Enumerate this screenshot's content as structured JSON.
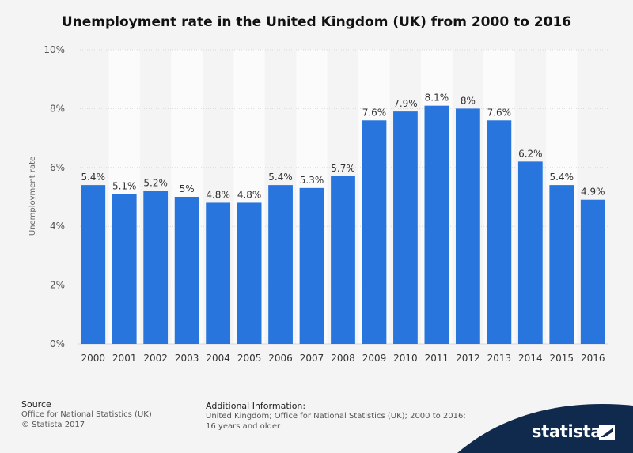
{
  "title": "Unemployment rate in the United Kingdom (UK) from 2000 to 2016",
  "chart_data": {
    "type": "bar",
    "title": "Unemployment rate in the United Kingdom (UK) from 2000 to 2016",
    "xlabel": "",
    "ylabel": "Unemployment rate",
    "categories": [
      "2000",
      "2001",
      "2002",
      "2003",
      "2004",
      "2005",
      "2006",
      "2007",
      "2008",
      "2009",
      "2010",
      "2011",
      "2012",
      "2013",
      "2014",
      "2015",
      "2016"
    ],
    "values": [
      5.4,
      5.1,
      5.2,
      5.0,
      4.8,
      4.8,
      5.4,
      5.3,
      5.7,
      7.6,
      7.9,
      8.1,
      8.0,
      7.6,
      6.2,
      5.4,
      4.9
    ],
    "value_labels": [
      "5.4%",
      "5.1%",
      "5.2%",
      "5%",
      "4.8%",
      "4.8%",
      "5.4%",
      "5.3%",
      "5.7%",
      "7.6%",
      "7.9%",
      "8.1%",
      "8%",
      "7.6%",
      "6.2%",
      "5.4%",
      "4.9%"
    ],
    "ylim": [
      0,
      10
    ],
    "yticks": [
      0,
      2,
      4,
      6,
      8,
      10
    ],
    "ytick_labels": [
      "0%",
      "2%",
      "4%",
      "6%",
      "8%",
      "10%"
    ],
    "grid": true,
    "bar_color": "#2876dd"
  },
  "footer": {
    "source_heading": "Source",
    "source_line1": "Office for National Statistics (UK)",
    "source_line2": "© Statista 2017",
    "info_heading": "Additional Information:",
    "info_line1": "United Kingdom; Office for National Statistics (UK); 2000 to 2016;",
    "info_line2": "16 years and older"
  },
  "brand": {
    "name": "statista",
    "color": "#0f2a4d"
  }
}
